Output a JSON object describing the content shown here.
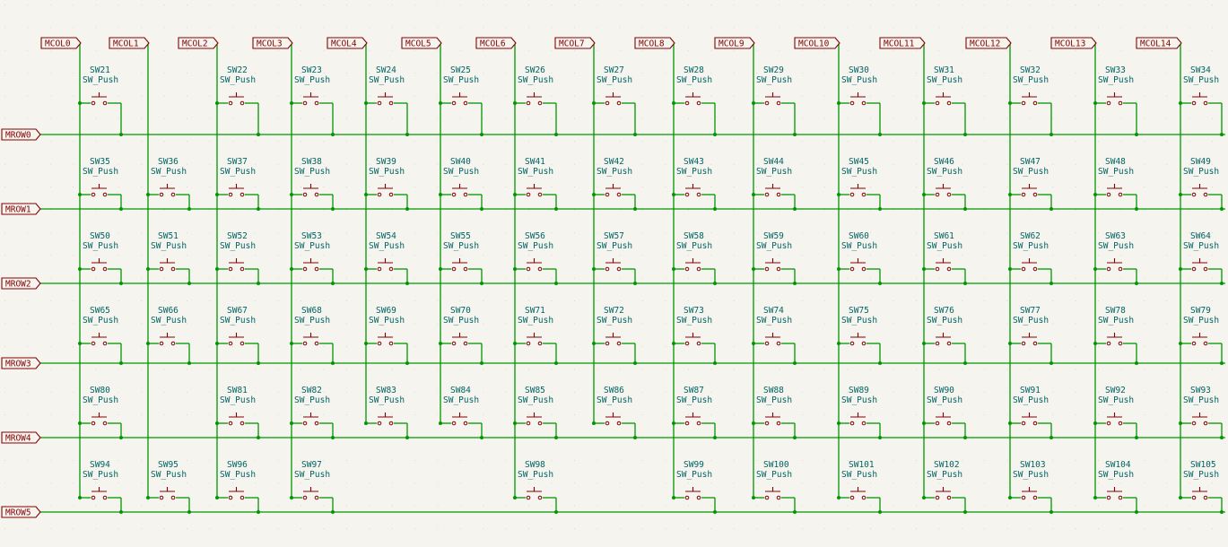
{
  "schematic": {
    "colors": {
      "wire": "#009600",
      "symbol": "#840000",
      "text": "#006464",
      "label": "#840000",
      "background": "#f5f4ef"
    },
    "column_labels": [
      "MCOL0",
      "MCOL1",
      "MCOL2",
      "MCOL3",
      "MCOL4",
      "MCOL5",
      "MCOL6",
      "MCOL7",
      "MCOL8",
      "MCOL9",
      "MCOL10",
      "MCOL11",
      "MCOL12",
      "MCOL13",
      "MCOL14"
    ],
    "row_labels": [
      "MROW0",
      "MROW1",
      "MROW2",
      "MROW3",
      "MROW4",
      "MROW5"
    ],
    "switch_value": "SW_Push",
    "rows": [
      [
        "SW21",
        null,
        "SW22",
        "SW23",
        "SW24",
        "SW25",
        "SW26",
        "SW27",
        "SW28",
        "SW29",
        "SW30",
        "SW31",
        "SW32",
        "SW33",
        "SW34"
      ],
      [
        "SW35",
        "SW36",
        "SW37",
        "SW38",
        "SW39",
        "SW40",
        "SW41",
        "SW42",
        "SW43",
        "SW44",
        "SW45",
        "SW46",
        "SW47",
        "SW48",
        "SW49"
      ],
      [
        "SW50",
        "SW51",
        "SW52",
        "SW53",
        "SW54",
        "SW55",
        "SW56",
        "SW57",
        "SW58",
        "SW59",
        "SW60",
        "SW61",
        "SW62",
        "SW63",
        "SW64"
      ],
      [
        "SW65",
        "SW66",
        "SW67",
        "SW68",
        "SW69",
        "SW70",
        "SW71",
        "SW72",
        "SW73",
        "SW74",
        "SW75",
        "SW76",
        "SW77",
        "SW78",
        "SW79"
      ],
      [
        "SW80",
        null,
        "SW81",
        "SW82",
        "SW83",
        "SW84",
        "SW85",
        "SW86",
        "SW87",
        "SW88",
        "SW89",
        "SW90",
        "SW91",
        "SW92",
        "SW93"
      ],
      [
        "SW94",
        "SW95",
        "SW96",
        "SW97",
        null,
        null,
        "SW98",
        null,
        "SW99",
        "SW100",
        "SW101",
        "SW102",
        "SW103",
        "SW104",
        "SW105"
      ]
    ]
  }
}
